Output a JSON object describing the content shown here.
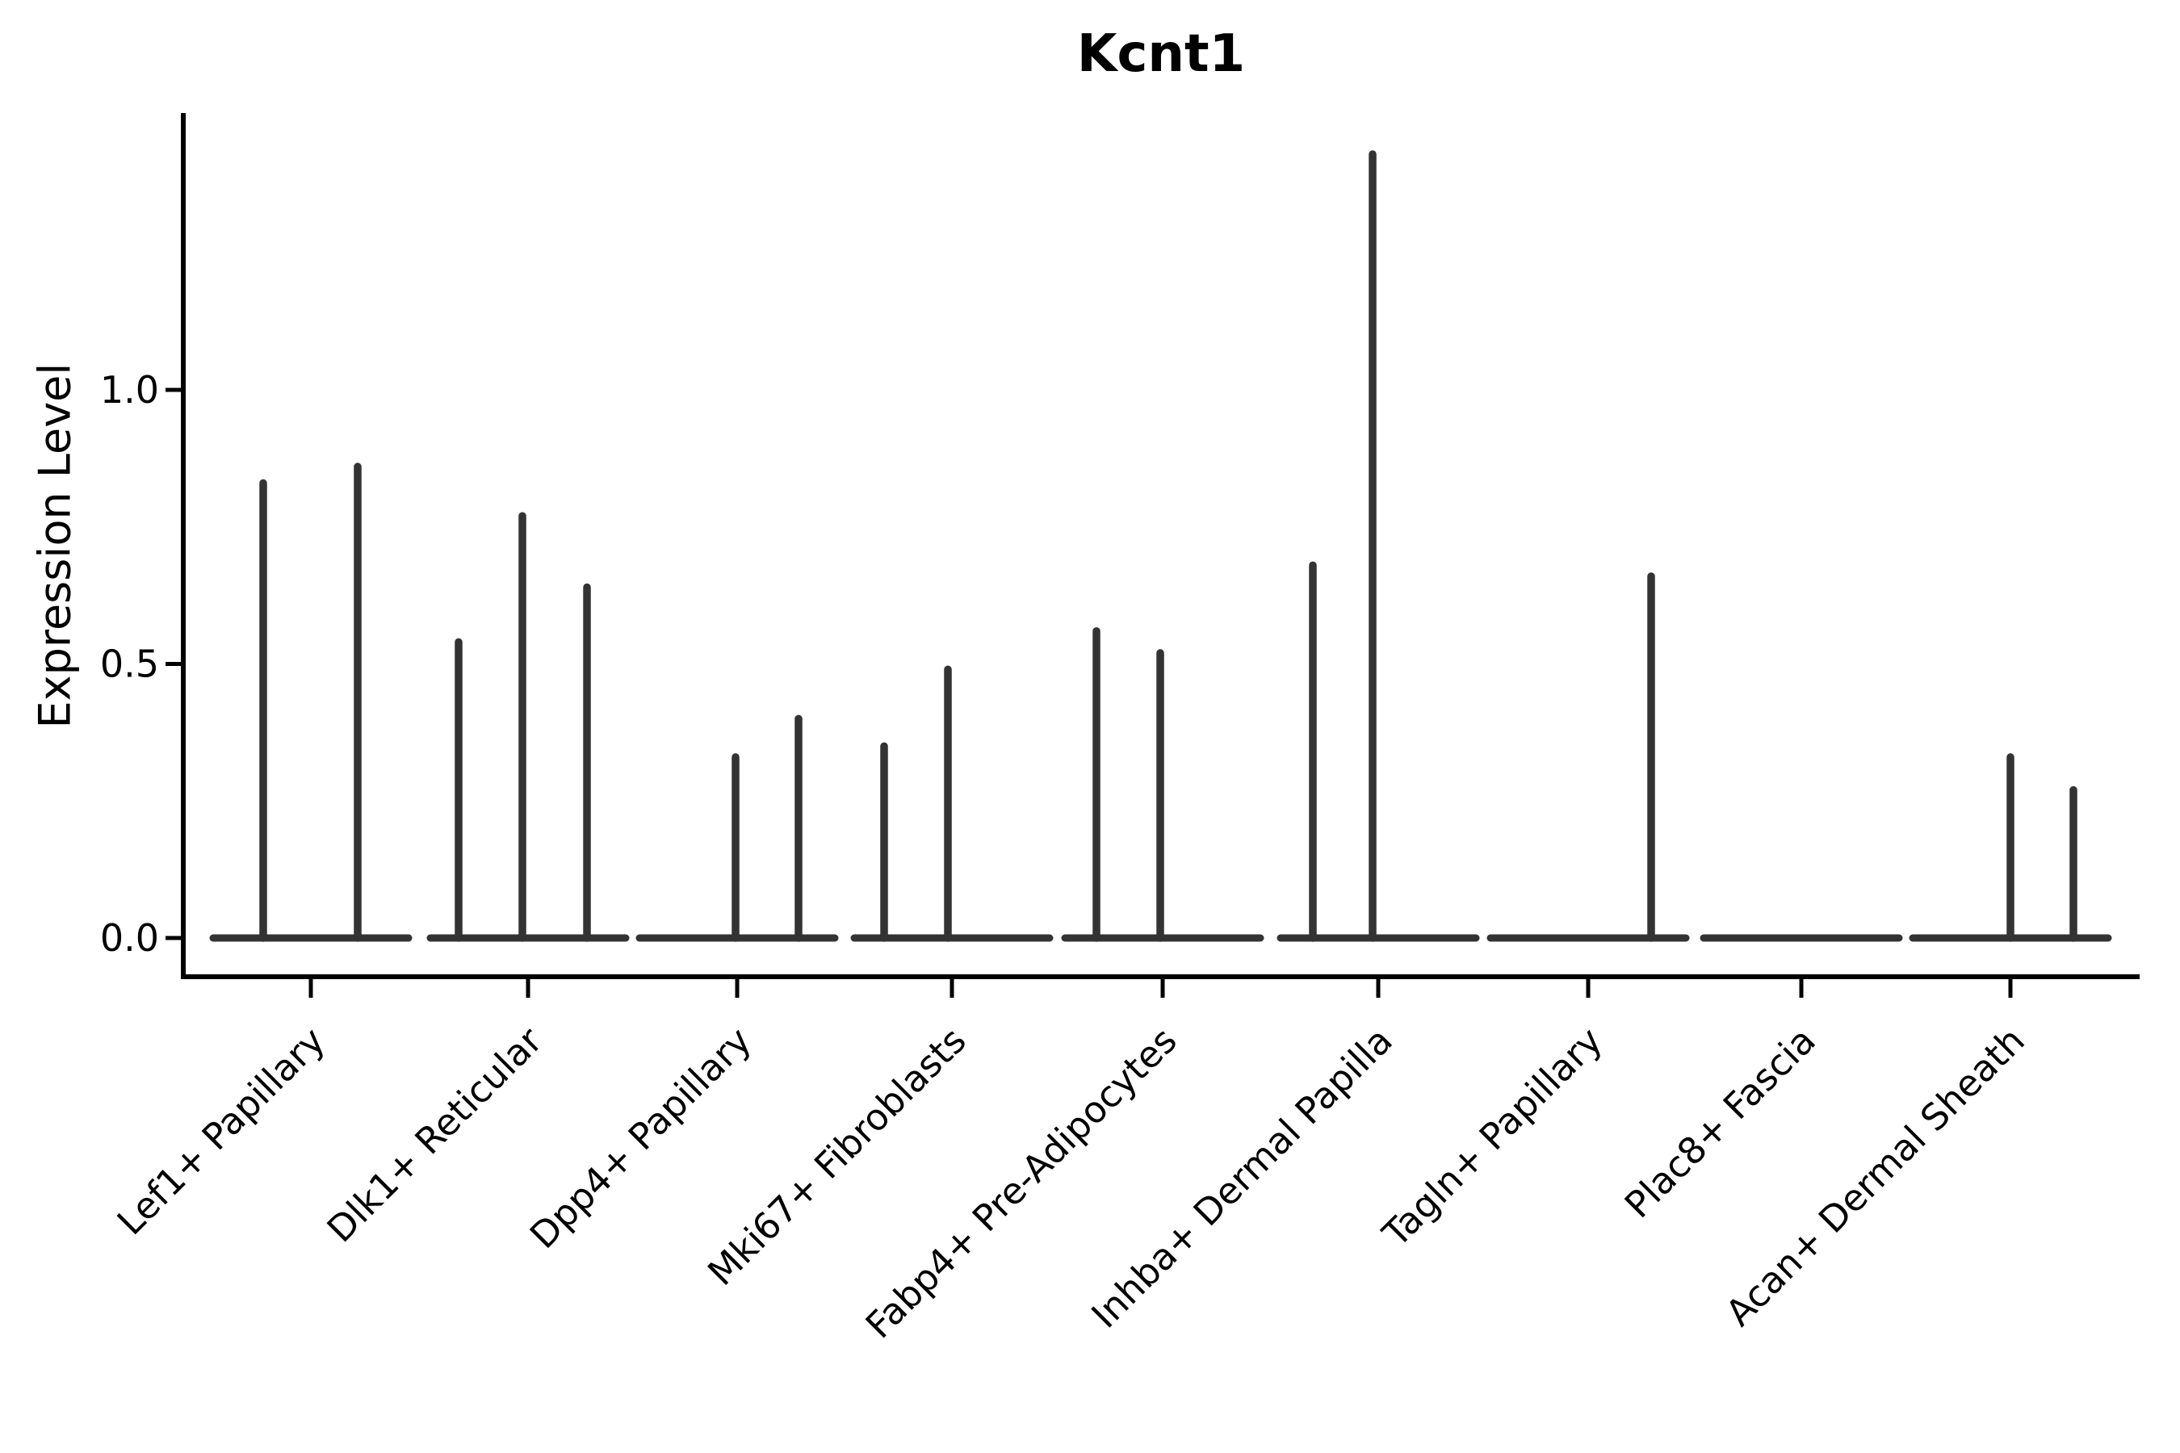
{
  "chart_data": {
    "type": "violin",
    "title": "Kcnt1",
    "ylabel": "Expression Level",
    "xlabel": "",
    "ytick_labels": [
      "0.0",
      "0.5",
      "1.0"
    ],
    "ytick_values": [
      0.0,
      0.5,
      1.0
    ],
    "ylim": [
      -0.07,
      1.51
    ],
    "grid": false,
    "legend": "none",
    "categories": [
      "Lef1+ Papillary",
      "Dlk1+ Reticular",
      "Dpp4+ Papillary",
      "Mki67+ Fibroblasts",
      "Fabp4+ Pre-Adipocytes",
      "Inhba+ Dermal Papilla",
      "Tagln+ Papillary",
      "Plac8+ Fascia",
      "Acan+ Dermal Sheath"
    ],
    "groups": [
      {
        "category": "Lef1+ Papillary",
        "spikes": [
          {
            "dx": -59,
            "max": 0.83
          },
          {
            "dx": 58,
            "max": 0.86
          }
        ]
      },
      {
        "category": "Dlk1+ Reticular",
        "spikes": [
          {
            "dx": -86,
            "max": 0.54
          },
          {
            "dx": -7,
            "max": 0.77
          },
          {
            "dx": 73,
            "max": 0.64
          }
        ]
      },
      {
        "category": "Dpp4+ Papillary",
        "spikes": [
          {
            "dx": -2,
            "max": 0.33
          },
          {
            "dx": 76,
            "max": 0.4
          }
        ]
      },
      {
        "category": "Mki67+ Fibroblasts",
        "spikes": [
          {
            "dx": -84,
            "max": 0.35
          },
          {
            "dx": -5,
            "max": 0.49
          }
        ]
      },
      {
        "category": "Fabp4+ Pre-Adipocytes",
        "spikes": [
          {
            "dx": -82,
            "max": 0.56
          },
          {
            "dx": -3,
            "max": 0.52
          }
        ]
      },
      {
        "category": "Inhba+ Dermal Papilla",
        "spikes": [
          {
            "dx": -81,
            "max": 0.68
          },
          {
            "dx": -7,
            "max": 1.43
          }
        ]
      },
      {
        "category": "Tagln+ Papillary",
        "spikes": [
          {
            "dx": 78,
            "max": 0.66
          }
        ]
      },
      {
        "category": "Plac8+ Fascia",
        "spikes": []
      },
      {
        "category": "Acan+ Dermal Sheath",
        "spikes": [
          {
            "dx": 0,
            "max": 0.33
          },
          {
            "dx": 78,
            "max": 0.27
          }
        ]
      }
    ],
    "colors": {
      "violin": "#333333",
      "axis": "#000000",
      "text": "#000000",
      "background": "#ffffff"
    }
  }
}
